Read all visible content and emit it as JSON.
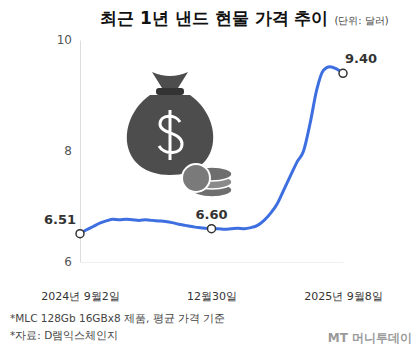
{
  "chart_data": {
    "type": "line",
    "title": "최근 1년 낸드 현물 가격 추이",
    "subtitle": "(단위: 달러)",
    "categories": [
      "2024년 9월2일",
      null,
      null,
      null,
      null,
      null,
      null,
      null,
      null,
      null,
      null,
      null,
      null,
      null,
      null,
      null,
      null,
      null,
      null,
      null,
      "12월30일",
      null,
      null,
      null,
      null,
      null,
      null,
      null,
      null,
      null,
      null,
      null,
      null,
      null,
      null,
      null,
      null,
      null,
      null,
      null,
      "2025년 9월8일"
    ],
    "values": [
      6.51,
      6.58,
      6.64,
      6.7,
      6.74,
      6.77,
      6.76,
      6.77,
      6.76,
      6.75,
      6.76,
      6.75,
      6.74,
      6.73,
      6.71,
      6.68,
      6.66,
      6.64,
      6.62,
      6.61,
      6.6,
      6.6,
      6.59,
      6.6,
      6.61,
      6.6,
      6.62,
      6.66,
      6.75,
      6.88,
      7.05,
      7.3,
      7.55,
      7.8,
      8.0,
      8.5,
      9.1,
      9.45,
      9.52,
      9.48,
      9.4
    ],
    "color": "#3d6fe0",
    "ylim": [
      6,
      10
    ],
    "yticks": [
      6,
      8,
      10
    ],
    "grid": false,
    "annotations": [
      {
        "x": 0,
        "text": "6.51"
      },
      {
        "x": 20,
        "text": "6.60"
      },
      {
        "x": 40,
        "text": "9.40"
      }
    ],
    "notes": [
      "*MLC 128Gb 16GBx8 제품, 평균 가격 기준",
      "*자료: D램익스체인지"
    ],
    "credit": "MT 머니투데이"
  }
}
